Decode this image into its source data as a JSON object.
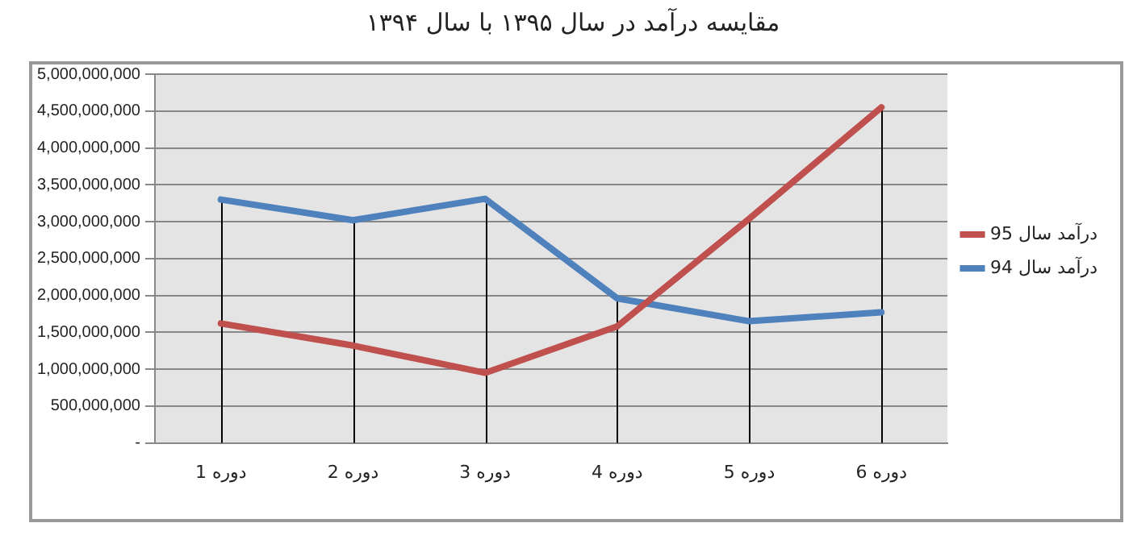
{
  "chart_data": {
    "type": "line",
    "title": "مقایسه درآمد در سال ۱۳۹۵ با سال ۱۳۹۴",
    "categories": [
      "دوره 1",
      "دوره 2",
      "دوره 3",
      "دوره 4",
      "دوره 5",
      "دوره 6"
    ],
    "series": [
      {
        "name": "درآمد سال 95",
        "color": "#c0504d",
        "values": [
          1620000000,
          1320000000,
          950000000,
          1580000000,
          3040000000,
          4550000000
        ],
        "errors": [
          null,
          null,
          null,
          null,
          [
            0,
            3040000000
          ],
          [
            0,
            4550000000
          ]
        ]
      },
      {
        "name": "درآمد سال 94",
        "color": "#4f81bd",
        "values": [
          3300000000,
          3020000000,
          3310000000,
          1960000000,
          1650000000,
          1770000000
        ],
        "errors": [
          [
            0,
            3300000000
          ],
          [
            0,
            3020000000
          ],
          [
            0,
            3310000000
          ],
          [
            0,
            1960000000
          ],
          null,
          null
        ]
      }
    ],
    "ylim": [
      0,
      5000000000
    ],
    "yticks": [
      {
        "value": 0,
        "label": "-"
      },
      {
        "value": 500000000,
        "label": "500,000,000"
      },
      {
        "value": 1000000000,
        "label": "1,000,000,000"
      },
      {
        "value": 1500000000,
        "label": "1,500,000,000"
      },
      {
        "value": 2000000000,
        "label": "2,000,000,000"
      },
      {
        "value": 2500000000,
        "label": "2,500,000,000"
      },
      {
        "value": 3000000000,
        "label": "3,000,000,000"
      },
      {
        "value": 3500000000,
        "label": "3,500,000,000"
      },
      {
        "value": 4000000000,
        "label": "4,000,000,000"
      },
      {
        "value": 4500000000,
        "label": "4,500,000,000"
      },
      {
        "value": 5000000000,
        "label": "5,000,000,000"
      }
    ],
    "grid": "y",
    "legend": "right",
    "marker": "none",
    "line_style": "solid"
  }
}
